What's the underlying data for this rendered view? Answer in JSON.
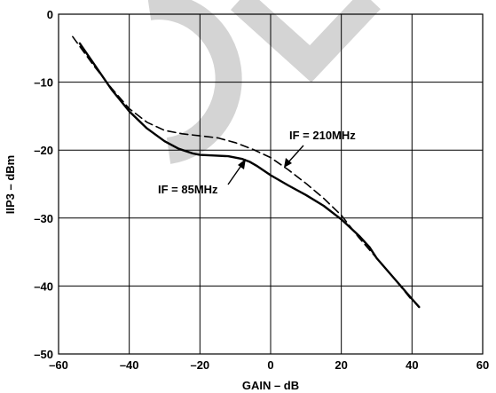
{
  "chart_data": {
    "type": "line",
    "xlabel": "GAIN – dB",
    "ylabel": "IIP3 – dBm",
    "xlim": [
      -60,
      60
    ],
    "ylim": [
      -50,
      0
    ],
    "xticks": [
      -60,
      -40,
      -20,
      0,
      20,
      40,
      60
    ],
    "yticks": [
      0,
      -10,
      -20,
      -30,
      -40,
      -50
    ],
    "xtick_labels": [
      "–60",
      "–40",
      "–20",
      "0",
      "20",
      "40",
      "60"
    ],
    "ytick_labels": [
      "0",
      "–10",
      "–20",
      "–30",
      "–40",
      "–50"
    ],
    "grid": true,
    "watermark_color": "#d0d0d0",
    "series": [
      {
        "name": "IF = 85MHz",
        "style": "solid",
        "x": [
          -54,
          -50,
          -45,
          -40,
          -35,
          -30,
          -26,
          -22,
          -20,
          -16,
          -12,
          -8,
          -6,
          -4,
          0,
          5,
          10,
          15,
          20,
          25,
          28,
          30,
          35,
          40,
          42
        ],
        "y": [
          -4.3,
          -7.3,
          -11.1,
          -14.3,
          -16.8,
          -18.7,
          -19.8,
          -20.5,
          -20.7,
          -20.8,
          -20.9,
          -21.3,
          -21.7,
          -22.3,
          -23.7,
          -25.2,
          -26.6,
          -28.2,
          -30.2,
          -32.6,
          -34.3,
          -35.9,
          -38.9,
          -41.9,
          -43.1
        ]
      },
      {
        "name": "IF = 210MHz",
        "style": "dashed",
        "x": [
          -56,
          -50,
          -45,
          -40,
          -35,
          -30,
          -25,
          -20,
          -15,
          -10,
          -5,
          0,
          5,
          10,
          15,
          20,
          25,
          30,
          35,
          40
        ],
        "y": [
          -3.3,
          -7.6,
          -10.9,
          -13.9,
          -15.9,
          -17.1,
          -17.6,
          -17.9,
          -18.2,
          -18.9,
          -19.9,
          -21.1,
          -22.9,
          -24.9,
          -27.1,
          -29.6,
          -32.9,
          -35.9,
          -38.9,
          -42.1
        ]
      }
    ],
    "annotations": [
      "IF = 210MHz",
      "IF = 85MHz"
    ]
  }
}
